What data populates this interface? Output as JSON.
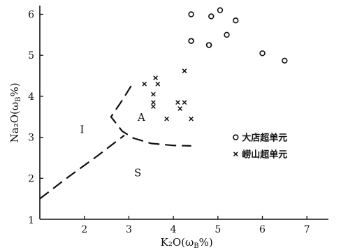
{
  "chart_data": {
    "type": "scatter",
    "xlabel": "K₂O(ω",
    "xlabel_sub": "B",
    "xlabel_suffix": "%)",
    "ylabel": "Na₂O(ω",
    "ylabel_sub": "B",
    "ylabel_suffix": "%)",
    "xlim": [
      1,
      7.8
    ],
    "ylim": [
      1,
      6.5
    ],
    "xticks": [
      2,
      3,
      4,
      5,
      6,
      7
    ],
    "yticks": [
      2,
      3,
      4,
      5,
      6
    ],
    "origin_label": "1",
    "grid": false,
    "series": [
      {
        "name": "大店超单元",
        "marker": "circle",
        "points": [
          [
            4.4,
            6.0
          ],
          [
            4.85,
            5.95
          ],
          [
            5.05,
            6.1
          ],
          [
            5.2,
            5.5
          ],
          [
            5.4,
            5.85
          ],
          [
            4.4,
            5.35
          ],
          [
            4.4,
            5.35
          ],
          [
            4.8,
            5.25
          ],
          [
            4.8,
            5.25
          ],
          [
            6.0,
            5.05
          ],
          [
            6.5,
            4.87
          ]
        ]
      },
      {
        "name": "崂山超单元",
        "marker": "cross",
        "points": [
          [
            3.35,
            4.3
          ],
          [
            3.6,
            4.45
          ],
          [
            3.65,
            4.3
          ],
          [
            3.55,
            4.05
          ],
          [
            3.55,
            3.85
          ],
          [
            3.55,
            3.75
          ],
          [
            3.85,
            3.45
          ],
          [
            4.1,
            3.85
          ],
          [
            4.15,
            3.7
          ],
          [
            4.25,
            3.85
          ],
          [
            4.4,
            3.45
          ],
          [
            4.25,
            4.62
          ]
        ]
      }
    ],
    "regions": [
      "I",
      "A",
      "S"
    ],
    "legend_position": "right"
  }
}
